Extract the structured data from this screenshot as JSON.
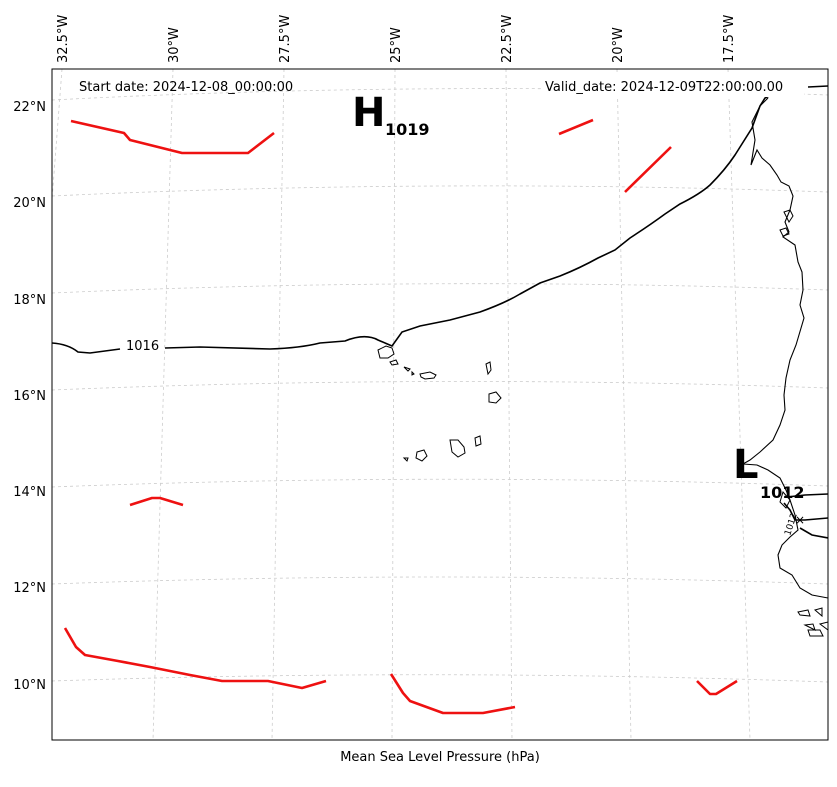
{
  "map": {
    "header_left": "Start date: 2024-12-08_00:00:00",
    "header_right": "Valid_date: 2024-12-09T22:00:00.00",
    "footer_label": "Mean Sea Level Pressure (hPa)",
    "lon_labels": [
      "32.5°W",
      "30°W",
      "27.5°W",
      "25°W",
      "22.5°W",
      "20°W",
      "17.5°W"
    ],
    "lat_labels": [
      "22°N",
      "20°N",
      "18°N",
      "16°N",
      "14°N",
      "12°N",
      "10°N"
    ],
    "high": {
      "symbol": "H",
      "value": "1019"
    },
    "low": {
      "symbol": "L",
      "value": "1012"
    },
    "isobar_label": "1016",
    "isobar_label_east": "1012",
    "colors": {
      "isobar": "#000000",
      "front": "#ee1111",
      "grid": "#cccccc"
    }
  }
}
